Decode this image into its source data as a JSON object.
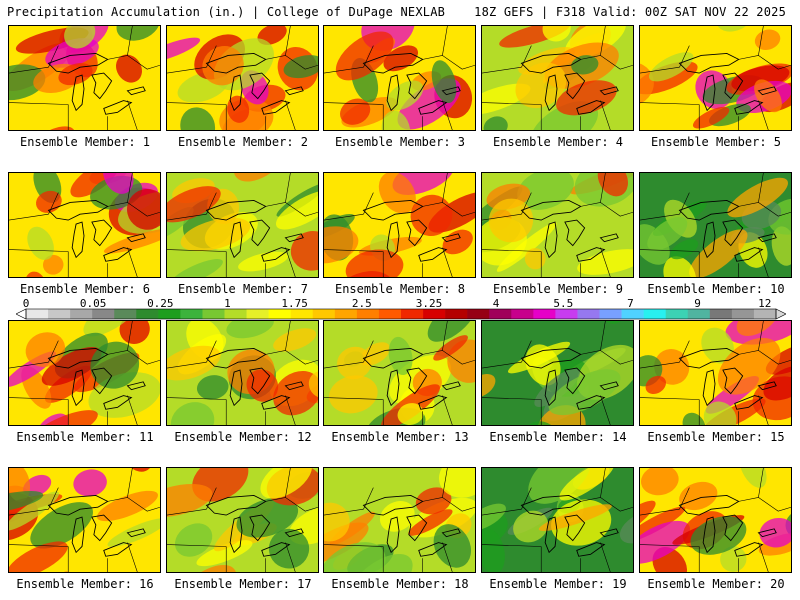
{
  "header": {
    "left": "Precipitation Accumulation (in.) | College of DuPage NEXLAB",
    "right": "18Z GEFS | F318 Valid: 00Z SAT NOV 22 2025"
  },
  "member_label_prefix": "Ensemble Member: ",
  "members": [
    {
      "id": "1",
      "tone": "wet"
    },
    {
      "id": "2",
      "tone": "wet"
    },
    {
      "id": "3",
      "tone": "wet"
    },
    {
      "id": "4",
      "tone": "moderate"
    },
    {
      "id": "5",
      "tone": "wet"
    },
    {
      "id": "6",
      "tone": "wet"
    },
    {
      "id": "7",
      "tone": "moderate"
    },
    {
      "id": "8",
      "tone": "wet"
    },
    {
      "id": "9",
      "tone": "moderate"
    },
    {
      "id": "10",
      "tone": "dry"
    },
    {
      "id": "11",
      "tone": "wet"
    },
    {
      "id": "12",
      "tone": "moderate"
    },
    {
      "id": "13",
      "tone": "moderate"
    },
    {
      "id": "14",
      "tone": "dry"
    },
    {
      "id": "15",
      "tone": "wet"
    },
    {
      "id": "16",
      "tone": "wet"
    },
    {
      "id": "17",
      "tone": "moderate"
    },
    {
      "id": "18",
      "tone": "moderate"
    },
    {
      "id": "19",
      "tone": "dry"
    },
    {
      "id": "20",
      "tone": "wet"
    }
  ],
  "colorbar": {
    "unit": "in.",
    "labels": [
      "0",
      "0.05",
      "0.25",
      "1",
      "1.75",
      "2.5",
      "3.25",
      "4",
      "5.5",
      "7",
      "9",
      "12"
    ],
    "colors": [
      "#e8e8e8",
      "#c8c8c8",
      "#a8a8a8",
      "#888888",
      "#5a8a5a",
      "#2e8b2e",
      "#1e9e1e",
      "#3cb33c",
      "#78c832",
      "#b4dc28",
      "#e6f028",
      "#ffff00",
      "#ffe600",
      "#ffc800",
      "#ffa500",
      "#ff7f00",
      "#ff5a00",
      "#f02800",
      "#d70000",
      "#b40000",
      "#960014",
      "#a0005a",
      "#c8008c",
      "#e600c8",
      "#c83cf0",
      "#9678f0",
      "#78a0ff",
      "#50d2ff",
      "#28f0f0",
      "#3cd2b4",
      "#50b4a0",
      "#787878",
      "#969696",
      "#b4b4b4"
    ]
  }
}
